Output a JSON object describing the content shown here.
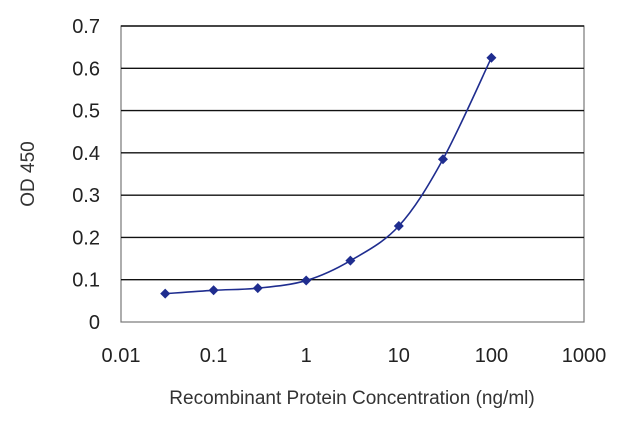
{
  "chart_data": {
    "type": "scatter",
    "xlabel": "Recombinant Protein Concentration (ng/ml)",
    "ylabel": "OD 450",
    "x_scale": "log",
    "xlim": [
      0.01,
      1000
    ],
    "ylim": [
      0,
      0.7
    ],
    "x_ticks": [
      "0.01",
      "0.1",
      "1",
      "10",
      "100",
      "1000"
    ],
    "y_ticks": [
      "0",
      "0.1",
      "0.2",
      "0.3",
      "0.4",
      "0.5",
      "0.6",
      "0.7"
    ],
    "grid": "horizontal",
    "series": [
      {
        "color": "#1f2d8f",
        "marker": "diamond",
        "points": [
          {
            "x": 0.03,
            "y": 0.067
          },
          {
            "x": 0.1,
            "y": 0.075
          },
          {
            "x": 0.3,
            "y": 0.08
          },
          {
            "x": 1,
            "y": 0.098
          },
          {
            "x": 3,
            "y": 0.145
          },
          {
            "x": 10,
            "y": 0.227
          },
          {
            "x": 30,
            "y": 0.385
          },
          {
            "x": 100,
            "y": 0.625
          }
        ]
      }
    ]
  }
}
